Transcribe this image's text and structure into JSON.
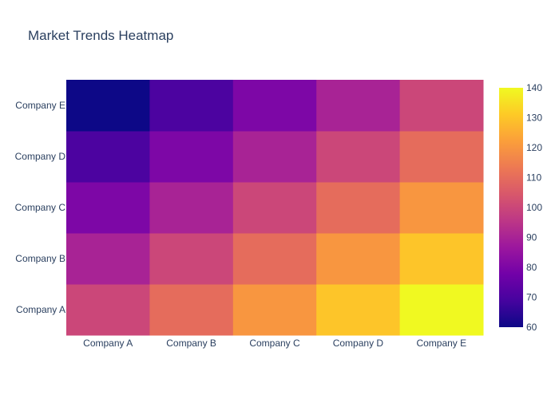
{
  "chart_data": {
    "type": "heatmap",
    "title": "Market Trends Heatmap",
    "x_categories": [
      "Company A",
      "Company B",
      "Company C",
      "Company D",
      "Company E"
    ],
    "y_categories": [
      "Company A",
      "Company B",
      "Company C",
      "Company D",
      "Company E"
    ],
    "z": [
      [
        100,
        110,
        120,
        130,
        140
      ],
      [
        90,
        100,
        110,
        120,
        130
      ],
      [
        80,
        90,
        100,
        110,
        120
      ],
      [
        70,
        80,
        90,
        100,
        110
      ],
      [
        60,
        70,
        80,
        90,
        100
      ]
    ],
    "colorbar": {
      "min": 60,
      "max": 140,
      "ticks": [
        60,
        70,
        80,
        90,
        100,
        110,
        120,
        130,
        140
      ]
    },
    "colorscale": "plasma",
    "colors": {
      "scale": [
        "#0d0887",
        "#46039f",
        "#7201a8",
        "#9c179e",
        "#bd3786",
        "#d8576b",
        "#ed7953",
        "#fb9f3a",
        "#fdca26",
        "#f0f921"
      ],
      "text": "#2a3f5f",
      "background": "#ffffff"
    }
  }
}
